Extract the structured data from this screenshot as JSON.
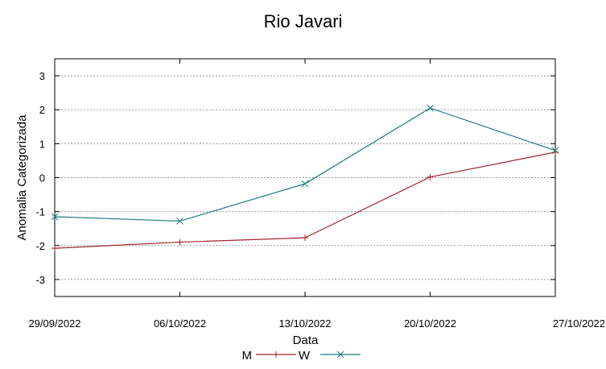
{
  "chart_data": {
    "type": "line",
    "title": "Rio Javari",
    "xlabel": "Data",
    "ylabel": "Anomalia Categorizada",
    "categories": [
      "29/09/2022",
      "06/10/2022",
      "13/10/2022",
      "20/10/2022",
      "27/10/2022"
    ],
    "yticks": [
      -3,
      -2,
      -1,
      0,
      1,
      2,
      3
    ],
    "ylim": [
      -3.5,
      3.5
    ],
    "grid": true,
    "legend_position": "bottom",
    "series": [
      {
        "name": "M",
        "color": "#a0262a",
        "marker": "plus",
        "values": [
          -2.08,
          -1.9,
          -1.77,
          0.02,
          0.75
        ]
      },
      {
        "name": "W",
        "color": "#1b7a7e",
        "marker": "cross",
        "values": [
          -1.15,
          -1.28,
          -0.18,
          2.05,
          0.8
        ]
      }
    ]
  }
}
